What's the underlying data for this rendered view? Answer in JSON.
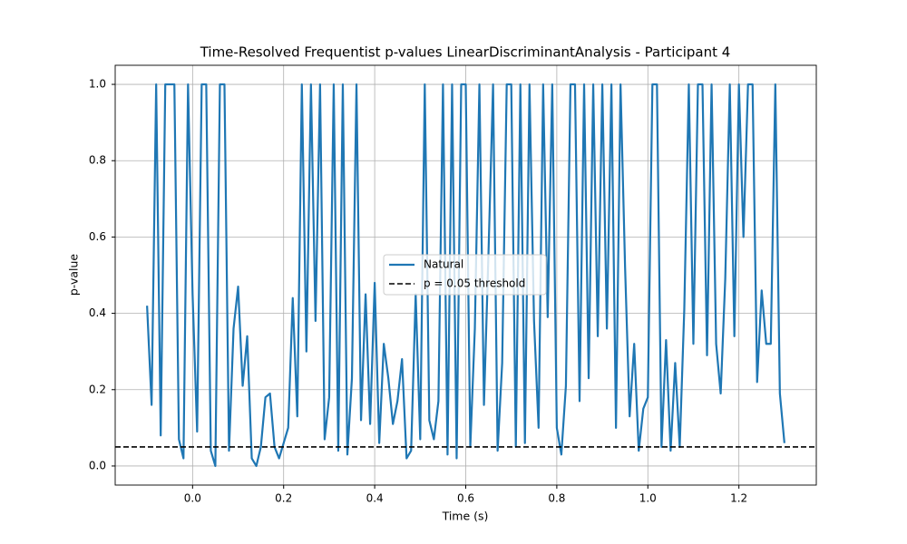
{
  "chart_data": {
    "type": "line",
    "title": "Time-Resolved Frequentist p-values LinearDiscriminantAnalysis - Participant 4",
    "x_label": "Time (s)",
    "y_label": "p-value",
    "x": [
      -0.1,
      -0.09,
      -0.08,
      -0.07,
      -0.06,
      -0.05,
      -0.04,
      -0.03,
      -0.02,
      -0.01,
      0.0,
      0.01,
      0.02,
      0.03,
      0.04,
      0.05,
      0.06,
      0.07,
      0.08,
      0.09,
      0.1,
      0.11,
      0.12,
      0.13,
      0.14,
      0.15,
      0.16,
      0.17,
      0.18,
      0.19,
      0.2,
      0.21,
      0.22,
      0.23,
      0.24,
      0.25,
      0.26,
      0.27,
      0.28,
      0.29,
      0.3,
      0.31,
      0.32,
      0.33,
      0.34,
      0.35,
      0.36,
      0.37,
      0.38,
      0.39,
      0.4,
      0.41,
      0.42,
      0.43,
      0.44,
      0.45,
      0.46,
      0.47,
      0.48,
      0.49,
      0.5,
      0.51,
      0.52,
      0.53,
      0.54,
      0.55,
      0.56,
      0.57,
      0.58,
      0.59,
      0.6,
      0.61,
      0.62,
      0.63,
      0.64,
      0.65,
      0.66,
      0.67,
      0.68,
      0.69,
      0.7,
      0.71,
      0.72,
      0.73,
      0.74,
      0.75,
      0.76,
      0.77,
      0.78,
      0.79,
      0.8,
      0.81,
      0.82,
      0.83,
      0.84,
      0.85,
      0.86,
      0.87,
      0.88,
      0.89,
      0.9,
      0.91,
      0.92,
      0.93,
      0.94,
      0.95,
      0.96,
      0.97,
      0.98,
      0.99,
      1.0,
      1.01,
      1.02,
      1.03,
      1.04,
      1.05,
      1.06,
      1.07,
      1.08,
      1.09,
      1.1,
      1.11,
      1.12,
      1.13,
      1.14,
      1.15,
      1.16,
      1.17,
      1.18,
      1.19,
      1.2,
      1.21,
      1.22,
      1.23,
      1.24,
      1.25,
      1.26,
      1.27,
      1.28,
      1.29,
      1.3
    ],
    "series": [
      {
        "name": "Natural",
        "color": "#1f77b4",
        "values": [
          0.42,
          0.16,
          1.0,
          0.08,
          1.0,
          1.0,
          1.0,
          0.07,
          0.02,
          1.0,
          0.45,
          0.09,
          1.0,
          1.0,
          0.04,
          0.0,
          1.0,
          1.0,
          0.04,
          0.36,
          0.47,
          0.21,
          0.34,
          0.02,
          0.0,
          0.05,
          0.18,
          0.19,
          0.05,
          0.02,
          0.06,
          0.1,
          0.44,
          0.13,
          1.0,
          0.3,
          1.0,
          0.38,
          1.0,
          0.07,
          0.18,
          1.0,
          0.04,
          1.0,
          0.03,
          0.23,
          1.0,
          0.12,
          0.45,
          0.11,
          0.48,
          0.06,
          0.32,
          0.23,
          0.11,
          0.17,
          0.28,
          0.02,
          0.04,
          0.45,
          0.07,
          1.0,
          0.12,
          0.07,
          0.17,
          1.0,
          0.03,
          1.0,
          0.02,
          1.0,
          1.0,
          0.05,
          0.36,
          1.0,
          0.16,
          0.56,
          1.0,
          0.04,
          0.27,
          1.0,
          1.0,
          0.05,
          1.0,
          0.06,
          1.0,
          0.38,
          0.1,
          1.0,
          0.39,
          1.0,
          0.1,
          0.03,
          0.21,
          1.0,
          1.0,
          0.17,
          1.0,
          0.23,
          1.0,
          0.34,
          1.0,
          0.36,
          1.0,
          0.1,
          1.0,
          0.52,
          0.13,
          0.32,
          0.04,
          0.15,
          0.18,
          1.0,
          1.0,
          0.05,
          0.33,
          0.04,
          0.27,
          0.05,
          0.41,
          1.0,
          0.32,
          1.0,
          1.0,
          0.29,
          1.0,
          0.32,
          0.19,
          0.49,
          1.0,
          0.34,
          1.0,
          0.6,
          1.0,
          1.0,
          0.22,
          0.46,
          0.32,
          0.32,
          1.0,
          0.19,
          0.06
        ]
      }
    ],
    "threshold": {
      "name": "p = 0.05 threshold",
      "value": 0.05,
      "color": "#000000"
    },
    "xlim": [
      -0.17,
      1.37
    ],
    "ylim": [
      -0.05,
      1.05
    ],
    "xticks": [
      {
        "value": 0.0,
        "label": "0.0"
      },
      0.2,
      0.4,
      0.6,
      0.8,
      {
        "value": 1.0,
        "label": "1.0"
      },
      1.2
    ],
    "yticks": [
      {
        "value": 0.0,
        "label": "0.0"
      },
      0.2,
      0.4,
      0.6,
      0.8,
      {
        "value": 1.0,
        "label": "1.0"
      }
    ],
    "grid": true
  }
}
